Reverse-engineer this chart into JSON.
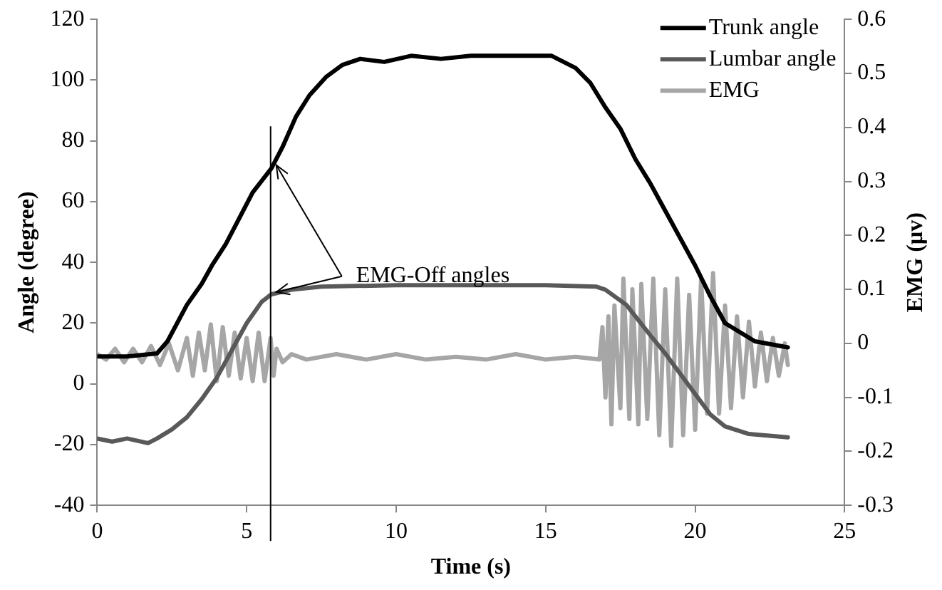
{
  "chart_data": {
    "type": "line",
    "xlabel": "Time (s)",
    "ylabel": "Angle (degree)",
    "y2label": "EMG (µv)",
    "xlim": [
      0,
      25
    ],
    "xticks": [
      0,
      5,
      10,
      15,
      20,
      25
    ],
    "ylim": [
      -40,
      120
    ],
    "yticks": [
      -40,
      -20,
      0,
      20,
      40,
      60,
      80,
      100,
      120
    ],
    "y2lim": [
      -0.3,
      0.6
    ],
    "y2ticks": [
      -0.3,
      -0.2,
      -0.1,
      0,
      0.1,
      0.2,
      0.3,
      0.4,
      0.5,
      0.6
    ],
    "grid": false,
    "legend": "top right",
    "marker": "none",
    "line_style": "solid",
    "series": [
      {
        "name": "Trunk angle",
        "color": "#000000",
        "x": [
          0,
          1,
          2,
          2.35,
          3,
          3.5,
          3.84,
          4.3,
          4.67,
          5.2,
          5.83,
          6.2,
          6.65,
          7.1,
          7.65,
          8.2,
          8.8,
          9.6,
          10.5,
          11.5,
          12.5,
          13.5,
          14.5,
          15.2,
          15.6,
          16,
          16.5,
          17,
          17.5,
          18,
          18.5,
          19,
          19.5,
          20,
          20.5,
          21,
          21.5,
          22,
          23.1
        ],
        "values": [
          9,
          9,
          10,
          14,
          26,
          33,
          39,
          46,
          53,
          63,
          71,
          78,
          88,
          95,
          101,
          105,
          107,
          106,
          108,
          107,
          108,
          108,
          108,
          108,
          106,
          104,
          99,
          91,
          84,
          74,
          66,
          57,
          48,
          39,
          29,
          20,
          17,
          14,
          12
        ]
      },
      {
        "name": "Lumbar angle",
        "color": "#595959",
        "x": [
          0,
          0.5,
          1,
          1.7,
          2,
          2.5,
          3,
          3.5,
          4,
          4.5,
          5,
          5.5,
          5.83,
          6.5,
          7.5,
          10,
          15,
          16.7,
          17,
          17.7,
          18.5,
          19,
          20.5,
          21,
          21.8,
          23.1
        ],
        "values": [
          -18,
          -19,
          -18,
          -19.5,
          -18,
          -15,
          -11,
          -5,
          2,
          11,
          20,
          27,
          29.5,
          31,
          32,
          32.5,
          32.5,
          32,
          31,
          26,
          16,
          10,
          -10,
          -14,
          -16.5,
          -17.6
        ]
      },
      {
        "name": "EMG",
        "color": "#a6a6a6",
        "axis": "y2",
        "x": [
          0,
          0.3,
          0.6,
          0.9,
          1.2,
          1.5,
          1.8,
          2.1,
          2.4,
          2.7,
          3.0,
          3.2,
          3.4,
          3.6,
          3.8,
          4.0,
          4.2,
          4.4,
          4.6,
          4.8,
          5.0,
          5.2,
          5.4,
          5.6,
          5.8,
          5.9,
          6.0,
          6.2,
          6.5,
          7,
          8,
          9,
          10,
          11,
          12,
          13,
          14,
          15,
          16,
          16.8,
          16.9,
          17.0,
          17.1,
          17.2,
          17.3,
          17.5,
          17.6,
          17.8,
          17.9,
          18.1,
          18.2,
          18.4,
          18.6,
          18.8,
          19.0,
          19.2,
          19.4,
          19.6,
          19.8,
          20.0,
          20.2,
          20.4,
          20.6,
          20.8,
          21.0,
          21.2,
          21.4,
          21.6,
          21.8,
          22.0,
          22.2,
          22.4,
          22.6,
          22.8,
          23.0,
          23.1
        ],
        "values": [
          -0.02,
          -0.03,
          -0.01,
          -0.035,
          -0.01,
          -0.035,
          -0.005,
          -0.04,
          0.0,
          -0.05,
          0.01,
          -0.06,
          0.02,
          -0.05,
          0.035,
          -0.07,
          0.03,
          -0.06,
          0.02,
          -0.065,
          0.01,
          -0.07,
          0.02,
          -0.07,
          0.01,
          -0.06,
          -0.01,
          -0.035,
          -0.02,
          -0.03,
          -0.02,
          -0.03,
          -0.02,
          -0.03,
          -0.025,
          -0.03,
          -0.02,
          -0.03,
          -0.025,
          -0.03,
          0.03,
          -0.1,
          0.05,
          -0.15,
          0.07,
          -0.12,
          0.12,
          -0.14,
          0.1,
          -0.15,
          0.11,
          -0.14,
          0.12,
          -0.17,
          0.1,
          -0.19,
          0.12,
          -0.17,
          0.09,
          -0.16,
          0.12,
          -0.13,
          0.13,
          -0.13,
          0.07,
          -0.12,
          0.05,
          -0.1,
          0.04,
          -0.08,
          0.02,
          -0.07,
          0.01,
          -0.06,
          0.0,
          -0.04
        ]
      }
    ],
    "ref_lines": [
      {
        "axis": "x",
        "value": 5.8,
        "color": "#000000"
      }
    ],
    "annotations": [
      {
        "text": "EMG-Off angles",
        "x": 5.8,
        "y": 72
      }
    ]
  }
}
